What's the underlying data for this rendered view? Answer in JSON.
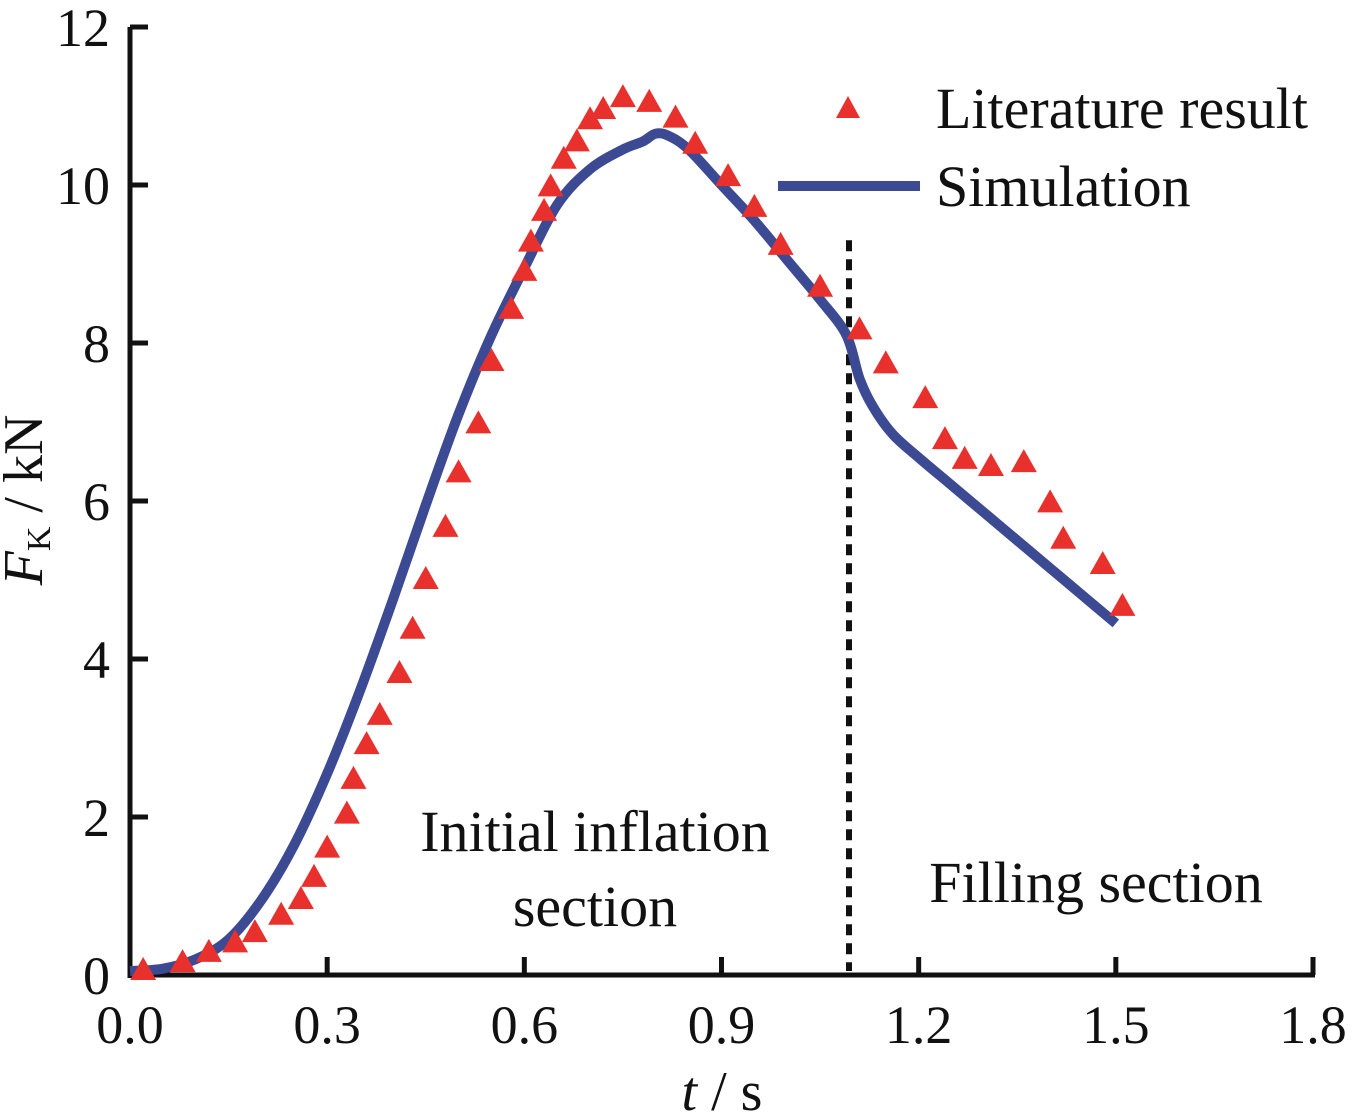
{
  "chart_data": {
    "type": "line",
    "title": "",
    "xlabel": "t / s",
    "xlabel_var": "t",
    "xlabel_unit": " / s",
    "ylabel": "F_K / kN",
    "ylabel_var": "F",
    "ylabel_sub": "K",
    "ylabel_unit": " / kN",
    "xlim": [
      0,
      1.8
    ],
    "ylim": [
      0,
      12
    ],
    "xticks": [
      0.0,
      0.3,
      0.6,
      0.9,
      1.2,
      1.5,
      1.8
    ],
    "xtick_labels": [
      "0.0",
      "0.3",
      "0.6",
      "0.9",
      "1.2",
      "1.5",
      "1.8"
    ],
    "yticks": [
      0,
      2,
      4,
      6,
      8,
      10,
      12
    ],
    "ytick_labels": [
      "0",
      "2",
      "4",
      "6",
      "8",
      "10",
      "12"
    ],
    "grid": false,
    "legend_position": "top-right",
    "colors": {
      "literature": "#e8302c",
      "simulation": "#3b4a92",
      "axis": "#111111"
    },
    "series": [
      {
        "name": "Literature result",
        "kind": "scatter",
        "marker": "triangle",
        "x": [
          0.02,
          0.08,
          0.12,
          0.16,
          0.19,
          0.23,
          0.26,
          0.28,
          0.3,
          0.33,
          0.34,
          0.36,
          0.38,
          0.41,
          0.43,
          0.45,
          0.48,
          0.5,
          0.53,
          0.55,
          0.58,
          0.6,
          0.61,
          0.63,
          0.64,
          0.66,
          0.68,
          0.7,
          0.72,
          0.75,
          0.79,
          0.83,
          0.86,
          0.91,
          0.95,
          0.99,
          1.05,
          1.11,
          1.15,
          1.21,
          1.24,
          1.27,
          1.31,
          1.36,
          1.4,
          1.42,
          1.48,
          1.51
        ],
        "y": [
          0.05,
          0.15,
          0.28,
          0.4,
          0.53,
          0.75,
          0.95,
          1.23,
          1.6,
          2.03,
          2.47,
          2.91,
          3.28,
          3.81,
          4.37,
          5.0,
          5.66,
          6.35,
          6.97,
          7.76,
          8.42,
          8.9,
          9.27,
          9.66,
          9.97,
          10.32,
          10.54,
          10.82,
          10.95,
          11.1,
          11.04,
          10.84,
          10.51,
          10.1,
          9.71,
          9.23,
          8.7,
          8.16,
          7.73,
          7.29,
          6.77,
          6.52,
          6.43,
          6.48,
          5.97,
          5.51,
          5.19,
          4.66
        ]
      },
      {
        "name": "Simulation",
        "kind": "line",
        "x": [
          0.0,
          0.05,
          0.1,
          0.15,
          0.2,
          0.25,
          0.3,
          0.35,
          0.4,
          0.45,
          0.5,
          0.55,
          0.6,
          0.65,
          0.7,
          0.75,
          0.78,
          0.8,
          0.82,
          0.85,
          0.9,
          0.95,
          1.0,
          1.05,
          1.09,
          1.11,
          1.13,
          1.16,
          1.2,
          1.25,
          1.3,
          1.35,
          1.4,
          1.45,
          1.5
        ],
        "y": [
          0.05,
          0.08,
          0.2,
          0.45,
          0.95,
          1.65,
          2.55,
          3.6,
          4.75,
          5.95,
          7.1,
          8.1,
          8.95,
          9.75,
          10.2,
          10.45,
          10.55,
          10.65,
          10.62,
          10.45,
          10.0,
          9.55,
          9.05,
          8.55,
          8.1,
          7.55,
          7.2,
          6.85,
          6.55,
          6.2,
          5.85,
          5.5,
          5.15,
          4.8,
          4.45
        ]
      }
    ],
    "annotations": [
      {
        "id": "initial",
        "lines": [
          "Initial inflation",
          "section"
        ]
      },
      {
        "id": "filling",
        "lines": [
          "Filling section"
        ]
      }
    ],
    "divider_x": 1.094,
    "divider_top_y": 9.3
  }
}
